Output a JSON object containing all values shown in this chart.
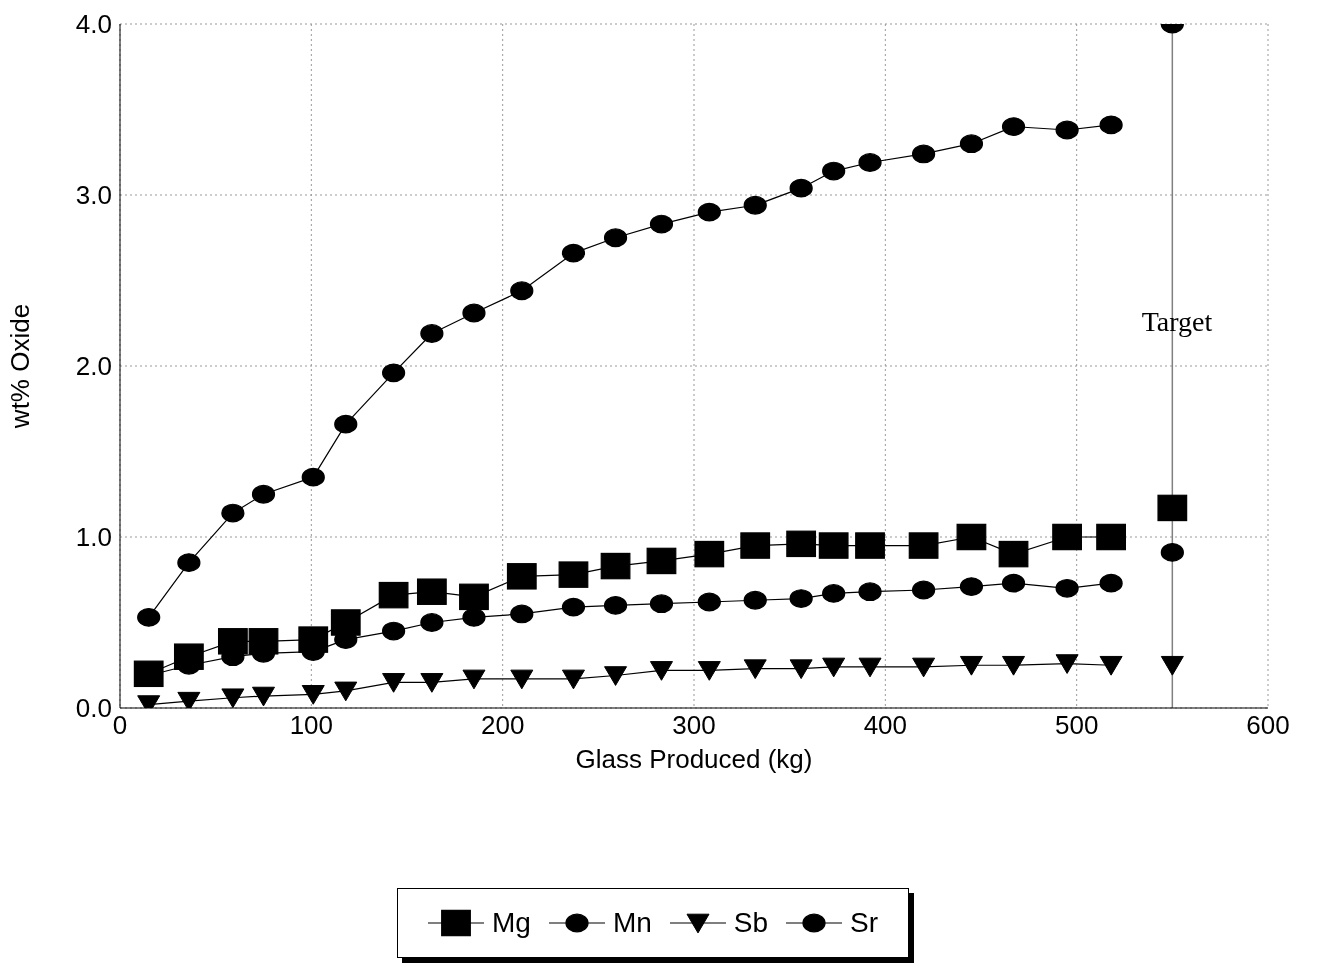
{
  "chart_data": {
    "type": "line",
    "xlabel": "Glass Produced (kg)",
    "ylabel": "wt% Oxide",
    "series": [
      {
        "name": "Mg",
        "color": "#000000",
        "marker": "square",
        "x": [
          15,
          36,
          59,
          75,
          101,
          118,
          143,
          163,
          185,
          210,
          237,
          259,
          283,
          308,
          332,
          356,
          373,
          392,
          420,
          445,
          467,
          495,
          518,
          534,
          550
        ],
        "values": [
          0.2,
          0.3,
          0.39,
          0.39,
          0.4,
          0.5,
          0.66,
          0.68,
          0.65,
          0.77,
          0.78,
          0.83,
          0.86,
          0.9,
          0.95,
          0.96,
          0.95,
          0.95,
          0.95,
          1.0,
          0.9,
          1.0,
          1.0,
          null,
          1.17
        ]
      },
      {
        "name": "Mn",
        "color": "#000000",
        "marker": "circle",
        "x": [
          15,
          36,
          59,
          75,
          101,
          118,
          143,
          163,
          185,
          210,
          237,
          259,
          283,
          308,
          332,
          356,
          373,
          392,
          420,
          445,
          467,
          495,
          518,
          534,
          550
        ],
        "values": [
          0.53,
          0.85,
          1.14,
          1.25,
          1.35,
          1.66,
          1.96,
          2.19,
          2.31,
          2.44,
          2.66,
          2.75,
          2.83,
          2.9,
          2.94,
          3.04,
          3.14,
          3.19,
          3.24,
          3.3,
          3.4,
          3.38,
          3.41,
          null,
          4.0
        ]
      },
      {
        "name": "Sb",
        "color": "#000000",
        "marker": "triangle",
        "x": [
          15,
          36,
          59,
          75,
          101,
          118,
          143,
          163,
          185,
          210,
          237,
          259,
          283,
          308,
          332,
          356,
          373,
          392,
          420,
          445,
          467,
          495,
          518,
          534,
          550
        ],
        "values": [
          0.02,
          0.04,
          0.06,
          0.07,
          0.08,
          0.1,
          0.15,
          0.15,
          0.17,
          0.17,
          0.17,
          0.19,
          0.22,
          0.22,
          0.23,
          0.23,
          0.24,
          0.24,
          0.24,
          0.25,
          0.25,
          0.26,
          0.25,
          null,
          0.25
        ]
      },
      {
        "name": "Sr",
        "color": "#000000",
        "marker": "circle",
        "x": [
          15,
          36,
          59,
          75,
          101,
          118,
          143,
          163,
          185,
          210,
          237,
          259,
          283,
          308,
          332,
          356,
          373,
          392,
          420,
          445,
          467,
          495,
          518,
          534,
          550
        ],
        "values": [
          0.19,
          0.25,
          0.3,
          0.32,
          0.33,
          0.4,
          0.45,
          0.5,
          0.53,
          0.55,
          0.59,
          0.6,
          0.61,
          0.62,
          0.63,
          0.64,
          0.67,
          0.68,
          0.69,
          0.71,
          0.73,
          0.7,
          0.73,
          null,
          0.91
        ]
      }
    ],
    "ref_lines": [
      {
        "axis": "x",
        "value": 550,
        "label": "Target",
        "color": "#808080"
      }
    ],
    "xlim": [
      0,
      600
    ],
    "xticks": [
      0,
      100,
      200,
      300,
      400,
      500,
      600
    ],
    "ylim": [
      0,
      4
    ],
    "yticks": [
      {
        "value": 0,
        "label": "0.0"
      },
      {
        "value": 1,
        "label": "1.0"
      },
      {
        "value": 2,
        "label": "2.0"
      },
      {
        "value": 3,
        "label": "3.0"
      },
      {
        "value": 4,
        "label": "4.0"
      }
    ],
    "grid": true,
    "legend": "bottom"
  }
}
